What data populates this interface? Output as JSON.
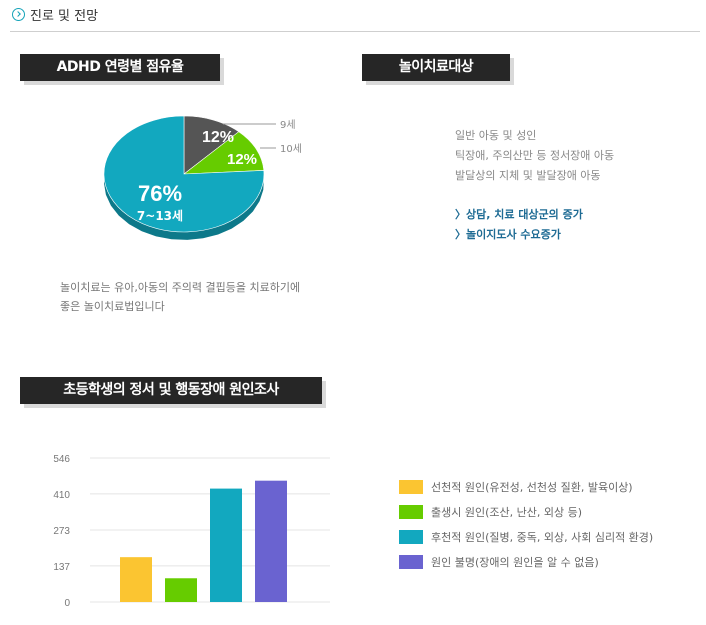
{
  "header": {
    "title": "진로 및 전망",
    "icon": "circle-arrow-icon"
  },
  "sections": {
    "adhd_title": "ADHD 연령별 점유율",
    "play_title": "놀이치료대상",
    "survey_title": "초등학생의 정서 및 행동장애 원인조사"
  },
  "pie_note": {
    "line1": "놀이치료는 유아,아동의 주의력 결핍등을 치료하기에",
    "line2": "좋은 놀이치료법입니다"
  },
  "play_targets": {
    "items": [
      "일반 아동 및 성인",
      "틱장애, 주의산만 등 정서장애 아동",
      "발달상의 지체 및 발달장애 아동"
    ],
    "results": [
      "〉상담,  치료 대상군의 증가",
      "〉놀이지도사 수요증가"
    ]
  },
  "colors": {
    "teal": "#12a8bf",
    "green": "#66cc00",
    "gray": "#555555",
    "yellow": "#fbc531",
    "purple": "#6a63d0",
    "accent": "#1e6b94"
  },
  "chart_data": [
    {
      "type": "pie",
      "title": "ADHD 연령별 점유율",
      "slices": [
        {
          "label": "7~13세",
          "value": 76,
          "display": "76%",
          "color": "#12a8bf"
        },
        {
          "label": "10세",
          "value": 12,
          "display": "12%",
          "color": "#66cc00"
        },
        {
          "label": "9세",
          "value": 12,
          "display": "12%",
          "color": "#555555"
        }
      ]
    },
    {
      "type": "bar",
      "title": "초등학생의 정서 및 행동장애 원인조사",
      "categories": [
        "선천적 원인(유전성, 선천성 질환, 발육이상)",
        "출생시 원인(조산, 난산, 외상 등)",
        "후천적 원인(질병, 중독, 외상, 사회 심리적 환경)",
        "원인 불명(장애의 원인을 알 수 없음)"
      ],
      "values": [
        170,
        90,
        430,
        460
      ],
      "colors": [
        "#fbc531",
        "#66cc00",
        "#12a8bf",
        "#6a63d0"
      ],
      "yticks": [
        0,
        137,
        273,
        410,
        546
      ],
      "ylim": [
        0,
        546
      ],
      "grid": true,
      "legend": "right"
    }
  ]
}
